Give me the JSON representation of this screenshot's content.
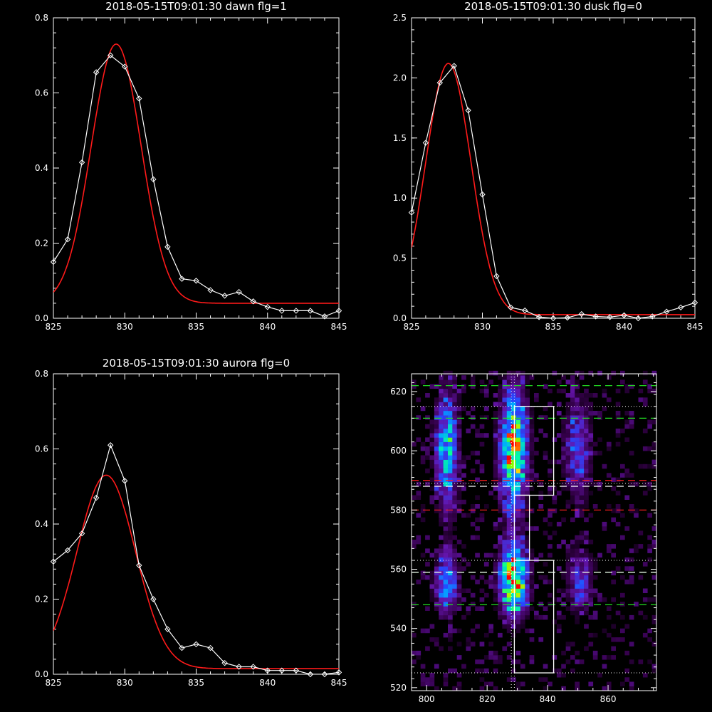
{
  "chart_data": [
    {
      "type": "line",
      "title": "2018-05-15T09:01:30 dawn flg=1",
      "xlim": [
        825,
        845
      ],
      "ylim": [
        0,
        0.8
      ],
      "xticks": [
        825,
        830,
        835,
        840,
        845
      ],
      "yticks": [
        0.0,
        0.2,
        0.4,
        0.6,
        0.8
      ],
      "ytick_labels": [
        "0.0",
        "0.2",
        "0.4",
        "0.6",
        "0.8"
      ],
      "series": [
        {
          "color": "#ffffff",
          "markers": "diamond",
          "x": [
            825,
            826,
            827,
            828,
            829,
            830,
            831,
            832,
            833,
            834,
            835,
            836,
            837,
            838,
            839,
            840,
            841,
            842,
            843,
            844,
            845
          ],
          "y": [
            0.15,
            0.21,
            0.415,
            0.655,
            0.7,
            0.67,
            0.585,
            0.37,
            0.19,
            0.105,
            0.1,
            0.075,
            0.06,
            0.07,
            0.045,
            0.03,
            0.02,
            0.02,
            0.02,
            0.005,
            0.02
          ]
        },
        {
          "color": "#ff1a1a",
          "model": "gaussian",
          "amplitude": 0.69,
          "center": 829.4,
          "sigma": 1.75,
          "baseline": 0.04,
          "xrange": [
            825,
            845
          ]
        }
      ]
    },
    {
      "type": "line",
      "title": "2018-05-15T09:01:30 dusk flg=0",
      "xlim": [
        825,
        845
      ],
      "ylim": [
        0,
        2.5
      ],
      "xticks": [
        825,
        830,
        835,
        840,
        845
      ],
      "yticks": [
        0.0,
        0.5,
        1.0,
        1.5,
        2.0,
        2.5
      ],
      "ytick_labels": [
        "0.0",
        "0.5",
        "1.0",
        "1.5",
        "2.0",
        "2.5"
      ],
      "series": [
        {
          "color": "#ffffff",
          "markers": "diamond",
          "x": [
            825,
            826,
            827,
            828,
            829,
            830,
            831,
            832,
            833,
            834,
            835,
            836,
            837,
            838,
            839,
            840,
            841,
            842,
            843,
            844,
            845
          ],
          "y": [
            0.88,
            1.46,
            1.96,
            2.1,
            1.73,
            1.03,
            0.35,
            0.09,
            0.065,
            0.01,
            0.0,
            0.005,
            0.035,
            0.015,
            0.01,
            0.025,
            0.0,
            0.015,
            0.055,
            0.09,
            0.13
          ]
        },
        {
          "color": "#ff1a1a",
          "model": "gaussian",
          "amplitude": 2.09,
          "center": 827.6,
          "sigma": 1.6,
          "baseline": 0.03,
          "xrange": [
            825,
            845
          ]
        }
      ]
    },
    {
      "type": "line",
      "title": "2018-05-15T09:01:30 aurora flg=0",
      "xlim": [
        825,
        845
      ],
      "ylim": [
        0,
        0.8
      ],
      "xticks": [
        825,
        830,
        835,
        840,
        845
      ],
      "yticks": [
        0.0,
        0.2,
        0.4,
        0.6,
        0.8
      ],
      "ytick_labels": [
        "0.0",
        "0.2",
        "0.4",
        "0.6",
        "0.8"
      ],
      "series": [
        {
          "color": "#ffffff",
          "markers": "diamond",
          "x": [
            825,
            826,
            827,
            828,
            829,
            830,
            831,
            832,
            833,
            834,
            835,
            836,
            837,
            838,
            839,
            840,
            841,
            842,
            843,
            844,
            845
          ],
          "y": [
            0.3,
            0.33,
            0.375,
            0.47,
            0.61,
            0.515,
            0.29,
            0.2,
            0.12,
            0.07,
            0.08,
            0.07,
            0.03,
            0.02,
            0.02,
            0.01,
            0.01,
            0.01,
            0.0,
            0.0,
            0.005
          ]
        },
        {
          "color": "#ff1a1a",
          "model": "gaussian",
          "amplitude": 0.515,
          "center": 828.7,
          "sigma": 2.05,
          "baseline": 0.015,
          "xrange": [
            825,
            845
          ]
        }
      ]
    },
    {
      "type": "heatmap",
      "xlim": [
        795,
        876
      ],
      "ylim": [
        519,
        626
      ],
      "xticks": [
        800,
        820,
        840,
        860
      ],
      "yticks": [
        520,
        540,
        560,
        580,
        600,
        620
      ],
      "blobs": [
        {
          "x": 806,
          "y": 600,
          "wx": 2.5,
          "wy": 13,
          "amp": 0.65
        },
        {
          "x": 828,
          "y": 600,
          "wx": 3.0,
          "wy": 13,
          "amp": 0.95
        },
        {
          "x": 849,
          "y": 600,
          "wx": 3.0,
          "wy": 12,
          "amp": 0.35
        },
        {
          "x": 806,
          "y": 555,
          "wx": 2.5,
          "wy": 7,
          "amp": 0.55
        },
        {
          "x": 828,
          "y": 556,
          "wx": 3.0,
          "wy": 8,
          "amp": 1.0
        },
        {
          "x": 850,
          "y": 555,
          "wx": 3.0,
          "wy": 7,
          "amp": 0.35
        }
      ],
      "peaks": [
        {
          "x": 828,
          "y": 603,
          "color": "#ff0000"
        },
        {
          "x": 827.5,
          "y": 557,
          "color": "#ff0000"
        }
      ],
      "dotted_vline_x": [
        828,
        829
      ],
      "dotted_hline_y": [
        615,
        589,
        563,
        525
      ],
      "green_dashed_y": [
        622,
        611,
        559,
        548
      ],
      "red_dashed_y": [
        590,
        580
      ],
      "white_dashed_y": [
        588,
        559
      ],
      "boxes": [
        {
          "x0": 829,
          "x1": 842,
          "y0": 585,
          "y1": 615
        },
        {
          "x0": 829,
          "x1": 834,
          "y0": 563,
          "y1": 585
        },
        {
          "x0": 829,
          "x1": 842,
          "y0": 525,
          "y1": 563
        }
      ]
    }
  ]
}
